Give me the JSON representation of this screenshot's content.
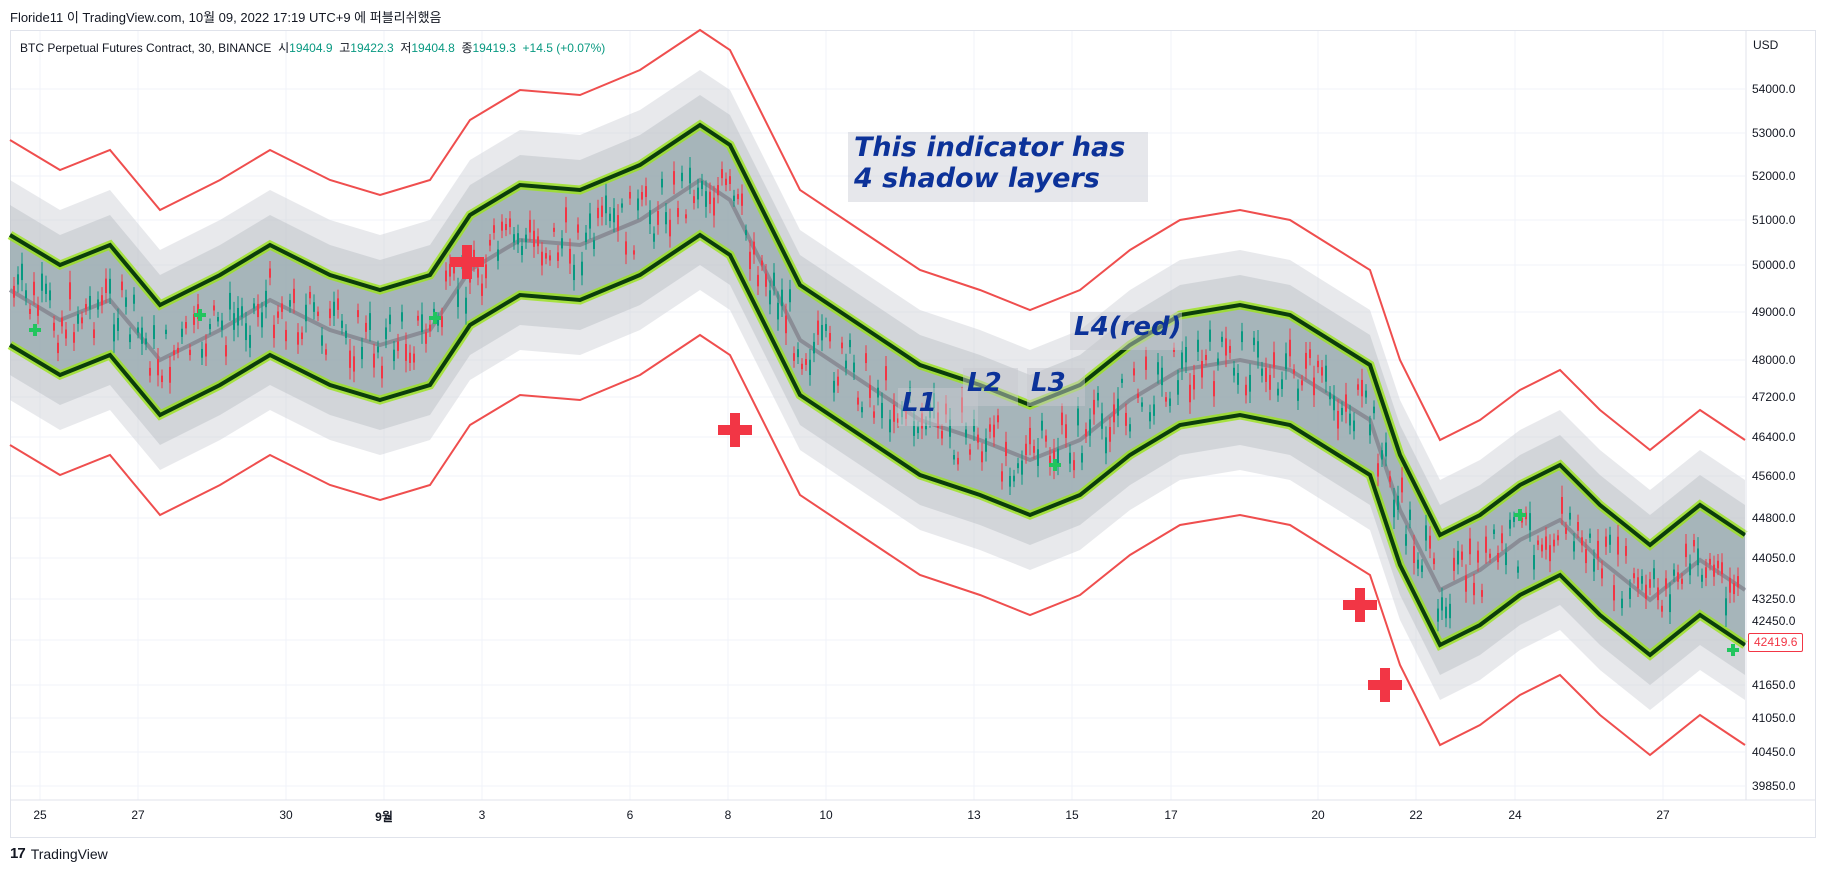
{
  "header": {
    "attribution": "Floride11 이 TradingView.com, 10월 09, 2022 17:19 UTC+9 에 퍼블리쉬했음"
  },
  "legend": {
    "symbol": "BTC Perpetual Futures Contract, 30, BINANCE",
    "open_label": "시",
    "open_value": "19404.9",
    "high_label": "고",
    "high_value": "19422.3",
    "low_label": "저",
    "low_value": "19404.8",
    "close_label": "종",
    "close_value": "19419.3",
    "change": "+14.5 (+0.07%)"
  },
  "price_axis": {
    "currency": "USD",
    "labels": [
      "54000.0",
      "53000.0",
      "52000.0",
      "51000.0",
      "50000.0",
      "49000.0",
      "48000.0",
      "47200.0",
      "46400.0",
      "45600.0",
      "44800.0",
      "44050.0",
      "43250.0",
      "42450.0",
      "41650.0",
      "41050.0",
      "40450.0",
      "39850.0"
    ],
    "current_price": "42419.6"
  },
  "time_axis": {
    "labels": [
      "25",
      "27",
      "30",
      "9월",
      "3",
      "6",
      "8",
      "10",
      "13",
      "15",
      "17",
      "20",
      "22",
      "24",
      "27"
    ]
  },
  "annotations": {
    "main_line1": "This indicator has",
    "main_line2": "4 shadow layers",
    "l1": "L1",
    "l2": "L2",
    "l3": "L3",
    "l4": "L4(red)"
  },
  "footer": {
    "brand": "TradingView",
    "logo_mark": "17"
  },
  "colors": {
    "bull": "#089981",
    "bear": "#f23645",
    "band_core": "#0b3d0b",
    "band_glow": "#9be31a",
    "shadow_grey": "#8a8d96",
    "note_text": "#0c3299",
    "outer_red": "#ef4e4e"
  }
}
